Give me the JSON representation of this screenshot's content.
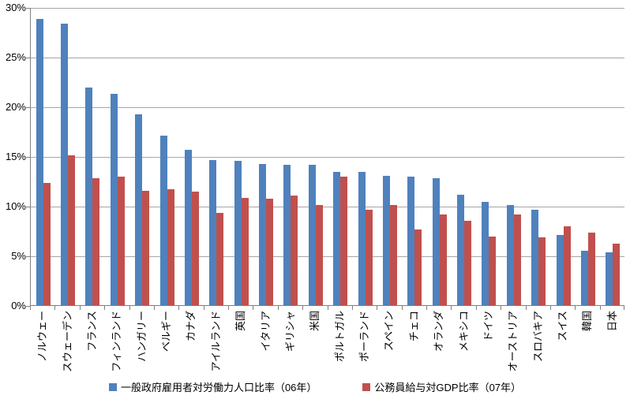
{
  "chart_data": {
    "type": "bar",
    "title": "",
    "xlabel": "",
    "ylabel": "",
    "ylim": [
      0,
      30
    ],
    "ytick_step": 5,
    "ytick_labels": [
      "0%",
      "5%",
      "10%",
      "15%",
      "20%",
      "25%",
      "30%"
    ],
    "grid": true,
    "legend_position": "bottom",
    "categories": [
      "ノルウェー",
      "スウェーデン",
      "フランス",
      "フィンランド",
      "ハンガリー",
      "ベルギー",
      "カナダ",
      "アイルランド",
      "英国",
      "イタリア",
      "ギリシャ",
      "米国",
      "ポルトガル",
      "ポーランド",
      "スペイン",
      "チェコ",
      "オランダ",
      "メキシコ",
      "ドイツ",
      "オーストリア",
      "スロバキア",
      "スイス",
      "韓国",
      "日本"
    ],
    "series": [
      {
        "name": "一般政府雇用者対労働力人口比率（06年）",
        "color": "#4F81BD",
        "values": [
          28.8,
          28.3,
          21.9,
          21.3,
          19.2,
          17.1,
          15.6,
          14.6,
          14.5,
          14.2,
          14.1,
          14.1,
          13.4,
          13.4,
          13.0,
          12.9,
          12.8,
          11.1,
          10.4,
          10.1,
          9.6,
          7.1,
          5.5,
          5.3
        ]
      },
      {
        "name": "公務員給与対GDP比率（07年）",
        "color": "#C0504D",
        "values": [
          12.3,
          15.1,
          12.8,
          12.9,
          11.5,
          11.7,
          11.4,
          9.3,
          10.8,
          10.7,
          11.0,
          10.1,
          12.9,
          9.6,
          10.1,
          7.6,
          9.1,
          8.5,
          6.9,
          9.1,
          6.8,
          7.9,
          7.3,
          6.2
        ]
      }
    ],
    "colors": {
      "gridline": "#A6A6A6",
      "axis": "#808080",
      "text": "#000000"
    }
  }
}
